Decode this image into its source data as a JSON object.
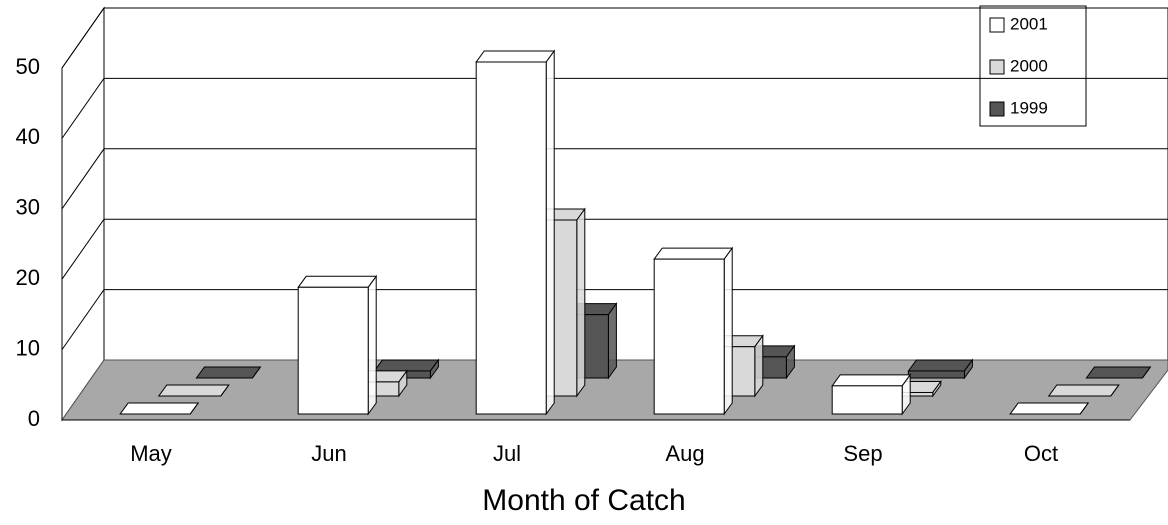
{
  "chart_data": {
    "type": "bar3d",
    "x_label": "Month of Catch",
    "categories": [
      "May",
      "Jun",
      "Jul",
      "Aug",
      "Sep",
      "Oct"
    ],
    "series": [
      {
        "name": "2001",
        "color": "#ffffff",
        "values": [
          0,
          18,
          50,
          22,
          4,
          0
        ]
      },
      {
        "name": "2000",
        "color": "#d9d9d9",
        "values": [
          0,
          2,
          25,
          7,
          0.5,
          0
        ]
      },
      {
        "name": "1999",
        "color": "#555555",
        "values": [
          0,
          1,
          9,
          3,
          1,
          0
        ]
      }
    ],
    "ylim": [
      0,
      50
    ],
    "yticks": [
      0,
      10,
      20,
      30,
      40,
      50
    ],
    "grid": true,
    "legend": "top-right"
  }
}
